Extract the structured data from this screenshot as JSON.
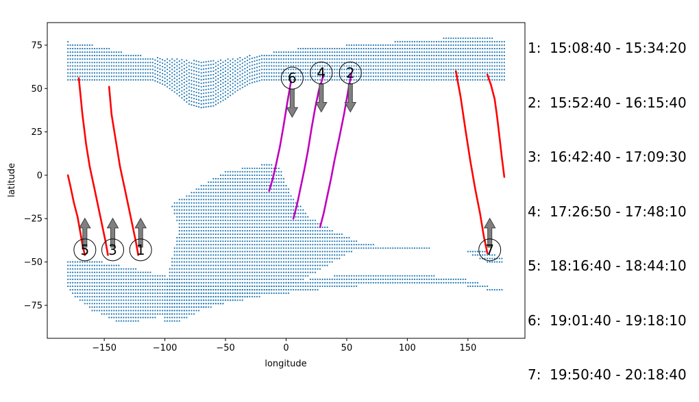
{
  "chart_data": {
    "type": "scatter",
    "xlabel": "longitude",
    "ylabel": "latitude",
    "xlim": [
      -197,
      197
    ],
    "ylim": [
      -94,
      88
    ],
    "xticks": [
      -150,
      -100,
      -50,
      0,
      50,
      100,
      150
    ],
    "yticks": [
      -75,
      -50,
      -25,
      0,
      25,
      50,
      75
    ],
    "xtick_labels": [
      "−150",
      "−100",
      "−50",
      "0",
      "50",
      "100",
      "150"
    ],
    "ytick_labels": [
      "−75",
      "−50",
      "−25",
      "0",
      "25",
      "50",
      "75"
    ],
    "grid": false,
    "colors": {
      "coverage": "#1f77b4",
      "day_track": "#ff0000",
      "night_track": "#bf00bf",
      "arrow_fill": "#808080",
      "arrow_edge": "#404040"
    },
    "coverage_regions": [
      {
        "lat_min": 55,
        "lat_max": 77,
        "lon_points": [
          [
            -180,
            77
          ],
          [
            -170,
            76
          ],
          [
            -150,
            74
          ],
          [
            -130,
            70
          ],
          [
            -110,
            68
          ],
          [
            -90,
            67
          ],
          [
            -70,
            66
          ],
          [
            -50,
            67
          ],
          [
            -30,
            69
          ],
          [
            -10,
            71
          ],
          [
            10,
            73
          ],
          [
            30,
            74
          ],
          [
            50,
            75
          ],
          [
            70,
            76
          ],
          [
            90,
            77
          ],
          [
            110,
            78
          ],
          [
            130,
            79
          ],
          [
            150,
            79
          ],
          [
            170,
            79
          ],
          [
            180,
            77
          ]
        ],
        "lower_points": [
          [
            -180,
            55
          ],
          [
            -150,
            55
          ],
          [
            -130,
            55
          ],
          [
            -110,
            55
          ],
          [
            -100,
            52
          ],
          [
            -90,
            47
          ],
          [
            -80,
            41
          ],
          [
            -70,
            39
          ],
          [
            -60,
            40
          ],
          [
            -50,
            44
          ],
          [
            -40,
            49
          ],
          [
            -30,
            53
          ],
          [
            -20,
            55
          ],
          [
            0,
            55
          ],
          [
            180,
            55
          ]
        ]
      },
      {
        "polygon": [
          [
            -95,
            -17
          ],
          [
            -75,
            -8
          ],
          [
            -50,
            2
          ],
          [
            -30,
            5
          ],
          [
            -13,
            7
          ],
          [
            -5,
            4
          ],
          [
            5,
            -12
          ],
          [
            20,
            -24
          ],
          [
            40,
            -32
          ],
          [
            60,
            -38
          ],
          [
            80,
            -41
          ],
          [
            120,
            -41
          ],
          [
            120,
            -42
          ],
          [
            60,
            -42
          ],
          [
            40,
            -50
          ],
          [
            10,
            -62
          ],
          [
            -30,
            -70
          ],
          [
            -70,
            -78
          ],
          [
            -90,
            -85
          ],
          [
            -100,
            -85
          ],
          [
            -100,
            -70
          ],
          [
            -95,
            -50
          ],
          [
            -88,
            -30
          ],
          [
            -95,
            -17
          ]
        ]
      },
      {
        "polygon": [
          [
            -180,
            -48
          ],
          [
            -150,
            -50
          ],
          [
            -110,
            -56
          ],
          [
            -70,
            -63
          ],
          [
            -20,
            -64
          ],
          [
            60,
            -56
          ],
          [
            110,
            -57
          ],
          [
            150,
            -60
          ],
          [
            168,
            -64
          ],
          [
            180,
            -66
          ],
          [
            180,
            -68
          ],
          [
            150,
            -64
          ],
          [
            100,
            -62
          ],
          [
            40,
            -65
          ],
          [
            -20,
            -70
          ],
          [
            -80,
            -78
          ],
          [
            -120,
            -84
          ],
          [
            -140,
            -84
          ],
          [
            -160,
            -78
          ],
          [
            -175,
            -70
          ],
          [
            -180,
            -65
          ]
        ]
      },
      {
        "polygon": [
          [
            150,
            -42
          ],
          [
            165,
            -44
          ],
          [
            180,
            -48
          ],
          [
            180,
            -52
          ],
          [
            165,
            -50
          ],
          [
            150,
            -45
          ]
        ]
      }
    ],
    "series": [
      {
        "name": "1",
        "color": "#ff0000",
        "kind": "day",
        "x": [
          -122,
          -124,
          -127,
          -130,
          -133,
          -137,
          -140,
          -144,
          -146
        ],
        "y": [
          -46,
          -38,
          -28,
          -18,
          -8,
          5,
          18,
          35,
          51
        ]
      },
      {
        "name": "2",
        "color": "#bf00bf",
        "kind": "night",
        "x": [
          28,
          31,
          34,
          37,
          40,
          44,
          48,
          51,
          54
        ],
        "y": [
          -30,
          -22,
          -12,
          -2,
          9,
          22,
          36,
          48,
          59
        ]
      },
      {
        "name": "3",
        "color": "#ff0000",
        "kind": "day",
        "x": [
          -147,
          -149,
          -152,
          -155,
          -158,
          -162,
          -165,
          -168,
          -171
        ],
        "y": [
          -46,
          -38,
          -28,
          -18,
          -8,
          5,
          18,
          35,
          56
        ]
      },
      {
        "name": "4",
        "color": "#bf00bf",
        "kind": "night",
        "x": [
          6,
          9,
          12,
          15,
          18,
          21,
          24,
          27,
          31
        ],
        "y": [
          -25,
          -17,
          -7,
          3,
          14,
          27,
          39,
          49,
          58
        ]
      },
      {
        "name": "5",
        "color": "#ff0000",
        "kind": "day",
        "x": [
          -166,
          -168,
          -170,
          -172,
          -175,
          -178,
          -180
        ],
        "y": [
          -46,
          -40,
          -32,
          -24,
          -16,
          -6,
          0
        ]
      },
      {
        "name": "6",
        "color": "#bf00bf",
        "kind": "night",
        "x": [
          -14,
          -11,
          -8,
          -5,
          -2,
          1,
          4
        ],
        "y": [
          -9,
          -2,
          7,
          17,
          29,
          42,
          54
        ]
      },
      {
        "name": "7",
        "color": "#ff0000",
        "kind": "day",
        "x": [
          166,
          163,
          160,
          156,
          152,
          148,
          144,
          140
        ],
        "y": [
          -45,
          -35,
          -22,
          -8,
          8,
          26,
          45,
          60
        ]
      },
      {
        "name": "7",
        "color": "#ff0000",
        "kind": "day",
        "x": [
          180,
          178,
          176,
          174,
          172,
          169,
          166
        ],
        "y": [
          -1,
          10,
          22,
          34,
          44,
          52,
          58
        ]
      }
    ],
    "pass_markers": [
      {
        "label": "1",
        "x": -120,
        "y": -43,
        "arrow": "up"
      },
      {
        "label": "2",
        "x": 53,
        "y": 59,
        "arrow": "down"
      },
      {
        "label": "3",
        "x": -143,
        "y": -43,
        "arrow": "up"
      },
      {
        "label": "4",
        "x": 29,
        "y": 59,
        "arrow": "down"
      },
      {
        "label": "5",
        "x": -166,
        "y": -43,
        "arrow": "up"
      },
      {
        "label": "6",
        "x": 5,
        "y": 56,
        "arrow": "down"
      },
      {
        "label": "7",
        "x": 168,
        "y": -43,
        "arrow": "up"
      }
    ]
  },
  "legend": {
    "entries": [
      "1:  15:08:40 - 15:34:20",
      "2:  15:52:40 - 16:15:40",
      "3:  16:42:40 - 17:09:30",
      "4:  17:26:50 - 17:48:10",
      "5:  18:16:40 - 18:44:10",
      "6:  19:01:40 - 19:18:10",
      "7:  19:50:40 - 20:18:40"
    ]
  }
}
